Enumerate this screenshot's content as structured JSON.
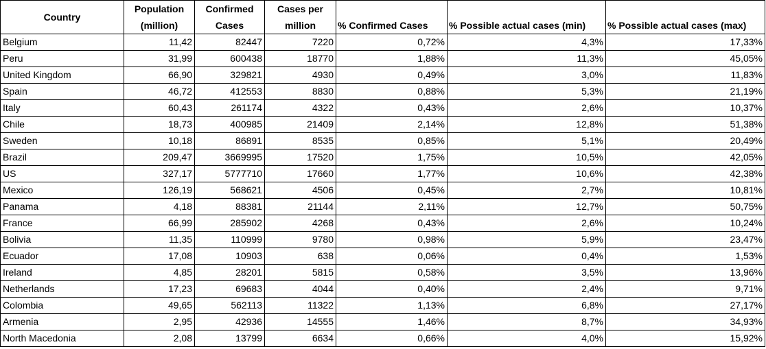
{
  "headers": {
    "country": "Country",
    "population_line1": "Population",
    "population_line2": "(million)",
    "confirmed_line1": "Confirmed",
    "confirmed_line2": "Cases",
    "cases_per_million_line1": "Cases per",
    "cases_per_million_line2": "million",
    "pct_confirmed": "% Confirmed Cases",
    "pct_possible_min": "% Possible actual cases (min)",
    "pct_possible_max": "% Possible actual cases (max)"
  },
  "rows": [
    {
      "country": "Belgium",
      "population": "11,42",
      "confirmed": "82447",
      "per_million": "7220",
      "pct_confirmed": "0,72%",
      "pct_min": "4,3%",
      "pct_max": "17,33%"
    },
    {
      "country": "Peru",
      "population": "31,99",
      "confirmed": "600438",
      "per_million": "18770",
      "pct_confirmed": "1,88%",
      "pct_min": "11,3%",
      "pct_max": "45,05%"
    },
    {
      "country": "United Kingdom",
      "population": "66,90",
      "confirmed": "329821",
      "per_million": "4930",
      "pct_confirmed": "0,49%",
      "pct_min": "3,0%",
      "pct_max": "11,83%"
    },
    {
      "country": "Spain",
      "population": "46,72",
      "confirmed": "412553",
      "per_million": "8830",
      "pct_confirmed": "0,88%",
      "pct_min": "5,3%",
      "pct_max": "21,19%"
    },
    {
      "country": "Italy",
      "population": "60,43",
      "confirmed": "261174",
      "per_million": "4322",
      "pct_confirmed": "0,43%",
      "pct_min": "2,6%",
      "pct_max": "10,37%"
    },
    {
      "country": "Chile",
      "population": "18,73",
      "confirmed": "400985",
      "per_million": "21409",
      "pct_confirmed": "2,14%",
      "pct_min": "12,8%",
      "pct_max": "51,38%"
    },
    {
      "country": "Sweden",
      "population": "10,18",
      "confirmed": "86891",
      "per_million": "8535",
      "pct_confirmed": "0,85%",
      "pct_min": "5,1%",
      "pct_max": "20,49%"
    },
    {
      "country": "Brazil",
      "population": "209,47",
      "confirmed": "3669995",
      "per_million": "17520",
      "pct_confirmed": "1,75%",
      "pct_min": "10,5%",
      "pct_max": "42,05%"
    },
    {
      "country": "US",
      "population": "327,17",
      "confirmed": "5777710",
      "per_million": "17660",
      "pct_confirmed": "1,77%",
      "pct_min": "10,6%",
      "pct_max": "42,38%"
    },
    {
      "country": "Mexico",
      "population": "126,19",
      "confirmed": "568621",
      "per_million": "4506",
      "pct_confirmed": "0,45%",
      "pct_min": "2,7%",
      "pct_max": "10,81%"
    },
    {
      "country": "Panama",
      "population": "4,18",
      "confirmed": "88381",
      "per_million": "21144",
      "pct_confirmed": "2,11%",
      "pct_min": "12,7%",
      "pct_max": "50,75%"
    },
    {
      "country": "France",
      "population": "66,99",
      "confirmed": "285902",
      "per_million": "4268",
      "pct_confirmed": "0,43%",
      "pct_min": "2,6%",
      "pct_max": "10,24%"
    },
    {
      "country": "Bolivia",
      "population": "11,35",
      "confirmed": "110999",
      "per_million": "9780",
      "pct_confirmed": "0,98%",
      "pct_min": "5,9%",
      "pct_max": "23,47%"
    },
    {
      "country": "Ecuador",
      "population": "17,08",
      "confirmed": "10903",
      "per_million": "638",
      "pct_confirmed": "0,06%",
      "pct_min": "0,4%",
      "pct_max": "1,53%"
    },
    {
      "country": "Ireland",
      "population": "4,85",
      "confirmed": "28201",
      "per_million": "5815",
      "pct_confirmed": "0,58%",
      "pct_min": "3,5%",
      "pct_max": "13,96%"
    },
    {
      "country": "Netherlands",
      "population": "17,23",
      "confirmed": "69683",
      "per_million": "4044",
      "pct_confirmed": "0,40%",
      "pct_min": "2,4%",
      "pct_max": "9,71%"
    },
    {
      "country": "Colombia",
      "population": "49,65",
      "confirmed": "562113",
      "per_million": "11322",
      "pct_confirmed": "1,13%",
      "pct_min": "6,8%",
      "pct_max": "27,17%"
    },
    {
      "country": "Armenia",
      "population": "2,95",
      "confirmed": "42936",
      "per_million": "14555",
      "pct_confirmed": "1,46%",
      "pct_min": "8,7%",
      "pct_max": "34,93%"
    },
    {
      "country": "North Macedonia",
      "population": "2,08",
      "confirmed": "13799",
      "per_million": "6634",
      "pct_confirmed": "0,66%",
      "pct_min": "4,0%",
      "pct_max": "15,92%"
    }
  ]
}
